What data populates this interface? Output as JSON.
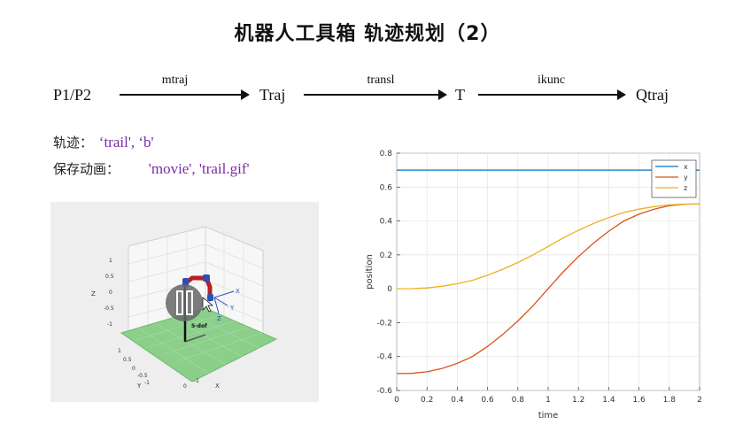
{
  "header": {
    "title": "机器人工具箱  轨迹规划（2）"
  },
  "flow": {
    "nodes": [
      "P1/P2",
      "Traj",
      "T",
      "Qtraj"
    ],
    "edges": [
      "mtraj",
      "transl",
      "ikunc"
    ]
  },
  "info": {
    "traj_label": "轨迹：",
    "traj_value": "‘trail', ‘b'",
    "save_label": "保存动画：",
    "save_value": "'movie', 'trail.gif'"
  },
  "robot_view": {
    "robot_name": "5-dof",
    "axis_labels": {
      "z": "Z",
      "y": "Y",
      "x": "X"
    },
    "z_ticks": [
      "1",
      "0.5",
      "0",
      "-0.5",
      "-1"
    ],
    "y_ticks": [
      "1",
      "0.5",
      "0",
      "-0.5",
      "-1"
    ],
    "x_ticks": [
      "0",
      "-1"
    ],
    "frame_labels": {
      "x": "X",
      "y": "Y",
      "z": "Z"
    },
    "colors": {
      "floor": "#8bcf8b",
      "link": "#b22222",
      "joint": "#2b4fb5"
    },
    "overlay_icon": "pause-icon"
  },
  "chart_data": {
    "type": "line",
    "title": "",
    "xlabel": "time",
    "ylabel": "position",
    "xlim": [
      0,
      2
    ],
    "ylim": [
      -0.6,
      0.8
    ],
    "x_ticks": [
      "0",
      "0.2",
      "0.4",
      "0.6",
      "0.8",
      "1",
      "1.2",
      "1.4",
      "1.6",
      "1.8",
      "2"
    ],
    "y_ticks": [
      "0.8",
      "0.6",
      "0.4",
      "0.2",
      "0",
      "-0.2",
      "-0.4",
      "-0.6"
    ],
    "legend_position": "top-right",
    "x": [
      0,
      0.1,
      0.2,
      0.3,
      0.4,
      0.5,
      0.6,
      0.7,
      0.8,
      0.9,
      1.0,
      1.1,
      1.2,
      1.3,
      1.4,
      1.5,
      1.6,
      1.7,
      1.8,
      1.9,
      2.0
    ],
    "series": [
      {
        "name": "x",
        "color": "#0072bd",
        "values": [
          0.7,
          0.7,
          0.7,
          0.7,
          0.7,
          0.7,
          0.7,
          0.7,
          0.7,
          0.7,
          0.7,
          0.7,
          0.7,
          0.7,
          0.7,
          0.7,
          0.7,
          0.7,
          0.7,
          0.7,
          0.7
        ]
      },
      {
        "name": "y",
        "color": "#d95319",
        "values": [
          -0.5,
          -0.499,
          -0.49,
          -0.47,
          -0.44,
          -0.4,
          -0.34,
          -0.27,
          -0.19,
          -0.1,
          0.0,
          0.1,
          0.19,
          0.27,
          0.34,
          0.4,
          0.44,
          0.47,
          0.49,
          0.499,
          0.5
        ]
      },
      {
        "name": "z",
        "color": "#edb120",
        "values": [
          0.0,
          0.001,
          0.005,
          0.015,
          0.03,
          0.05,
          0.08,
          0.115,
          0.155,
          0.2,
          0.25,
          0.3,
          0.345,
          0.385,
          0.42,
          0.45,
          0.47,
          0.485,
          0.495,
          0.4995,
          0.5
        ]
      }
    ]
  }
}
